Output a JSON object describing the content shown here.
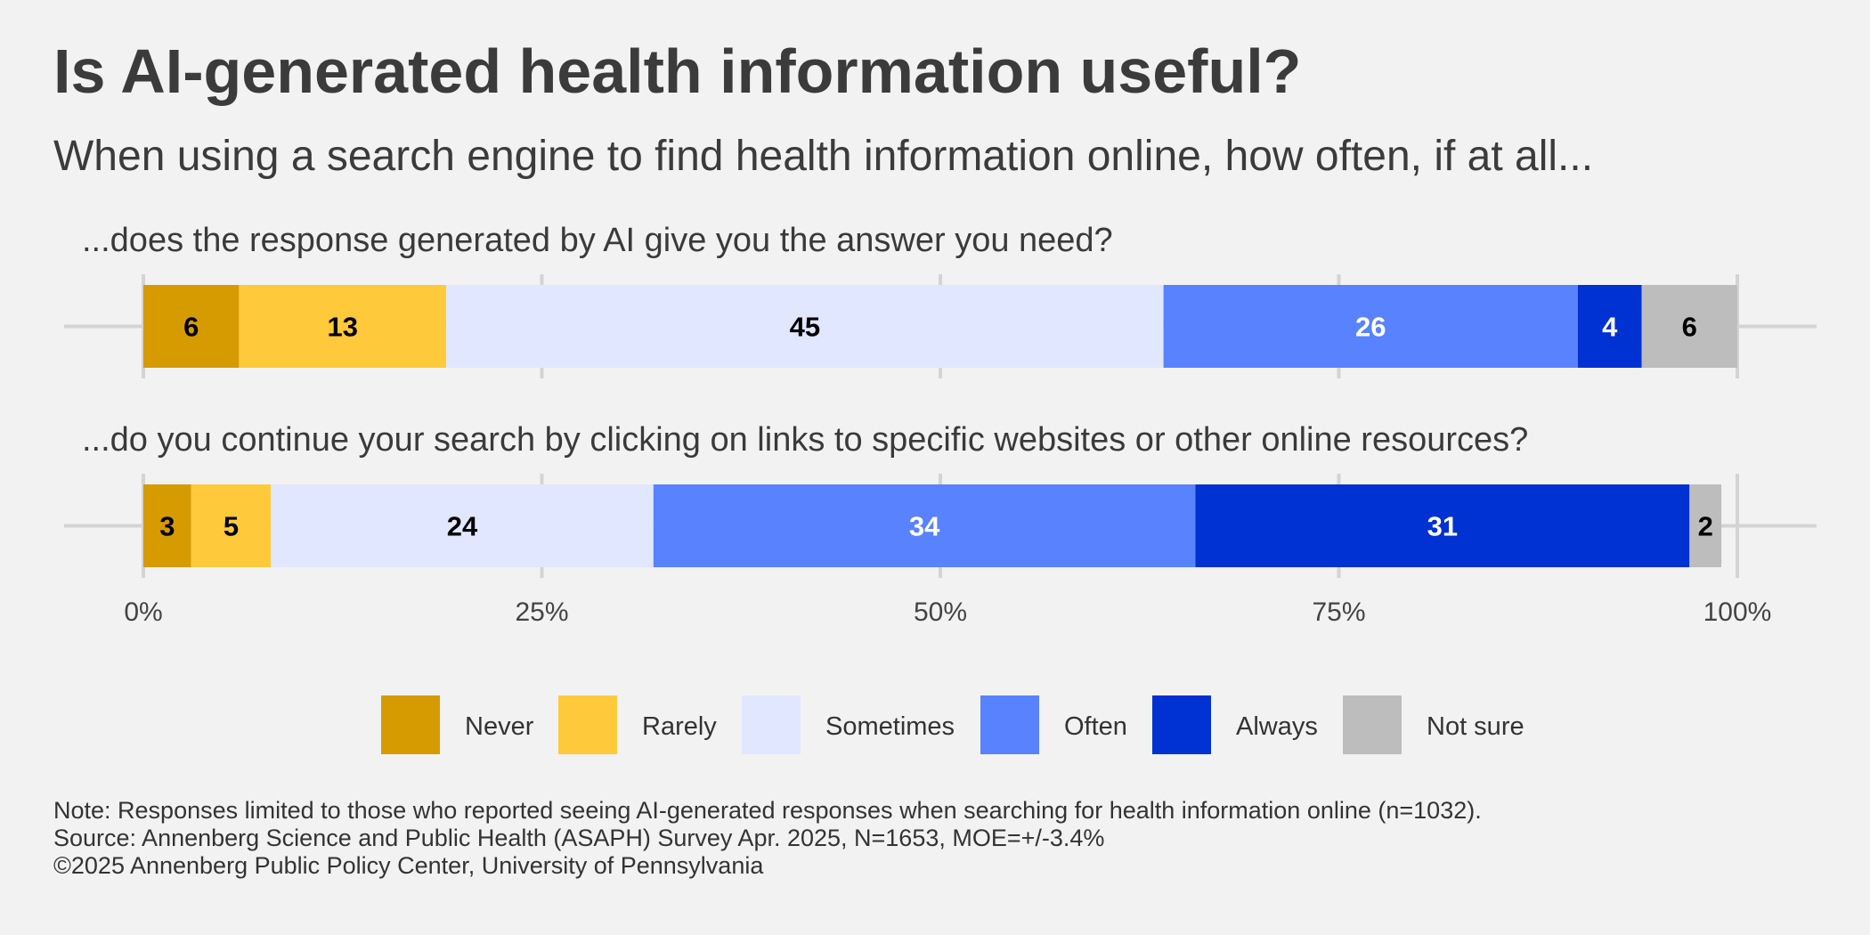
{
  "title": "Is AI-generated health information useful?",
  "subtitle": "When using a search engine to find health information online, how often, if at all...",
  "notes": [
    "Note: Responses limited to those who reported seeing AI-generated responses when searching for health information online (n=1032).",
    "Source: Annenberg Science and Public Health (ASAPH) Survey Apr. 2025, N=1653, MOE=+/-3.4%",
    "©2025 Annenberg Public Policy Center, University of Pennsylvania"
  ],
  "chart_data": {
    "type": "bar",
    "orientation": "horizontal",
    "stacked": true,
    "xlim": [
      0,
      100
    ],
    "x_ticks": [
      0,
      25,
      50,
      75,
      100
    ],
    "x_tick_labels": [
      "0%",
      "25%",
      "50%",
      "75%",
      "100%"
    ],
    "categories": [
      "...does the response generated by AI give you the answer you need?",
      "...do you continue your search by clicking on links to specific websites or other online resources?"
    ],
    "series": [
      {
        "name": "Never",
        "color": "#d59b00",
        "label_color": "#000000",
        "values": [
          6,
          3
        ]
      },
      {
        "name": "Rarely",
        "color": "#ffc93c",
        "label_color": "#000000",
        "values": [
          13,
          5
        ]
      },
      {
        "name": "Sometimes",
        "color": "#e1e7ff",
        "label_color": "#000000",
        "values": [
          45,
          24
        ]
      },
      {
        "name": "Often",
        "color": "#5882ff",
        "label_color": "#ffffff",
        "values": [
          26,
          34
        ]
      },
      {
        "name": "Always",
        "color": "#0031d3",
        "label_color": "#ffffff",
        "values": [
          4,
          31
        ]
      },
      {
        "name": "Not sure",
        "color": "#bdbdbd",
        "label_color": "#000000",
        "values": [
          6,
          2
        ]
      }
    ],
    "legend_position": "bottom",
    "grid": true
  }
}
